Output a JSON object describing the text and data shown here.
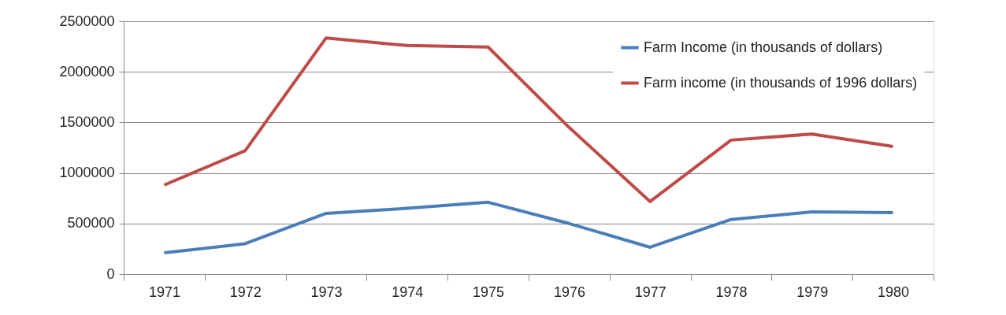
{
  "chart_data": {
    "type": "line",
    "categories": [
      "1971",
      "1972",
      "1973",
      "1974",
      "1975",
      "1976",
      "1977",
      "1978",
      "1979",
      "1980"
    ],
    "series": [
      {
        "name": "Farm Income (in thousands of dollars)",
        "color": "#4a7ebb",
        "values": [
          210000,
          300000,
          600000,
          650000,
          710000,
          500000,
          265000,
          540000,
          615000,
          607000
        ]
      },
      {
        "name": "Farm income (in thousands of 1996 dollars)",
        "color": "#be4b48",
        "values": [
          880000,
          1220000,
          2335000,
          2260000,
          2245000,
          1450000,
          717000,
          1325000,
          1385000,
          1262000
        ]
      }
    ],
    "ylim": [
      0,
      2500000
    ],
    "yticks": [
      0,
      500000,
      1000000,
      1500000,
      2000000,
      2500000
    ],
    "grid": "y",
    "legend": "top right",
    "marker": "none",
    "line_style": "solid"
  }
}
